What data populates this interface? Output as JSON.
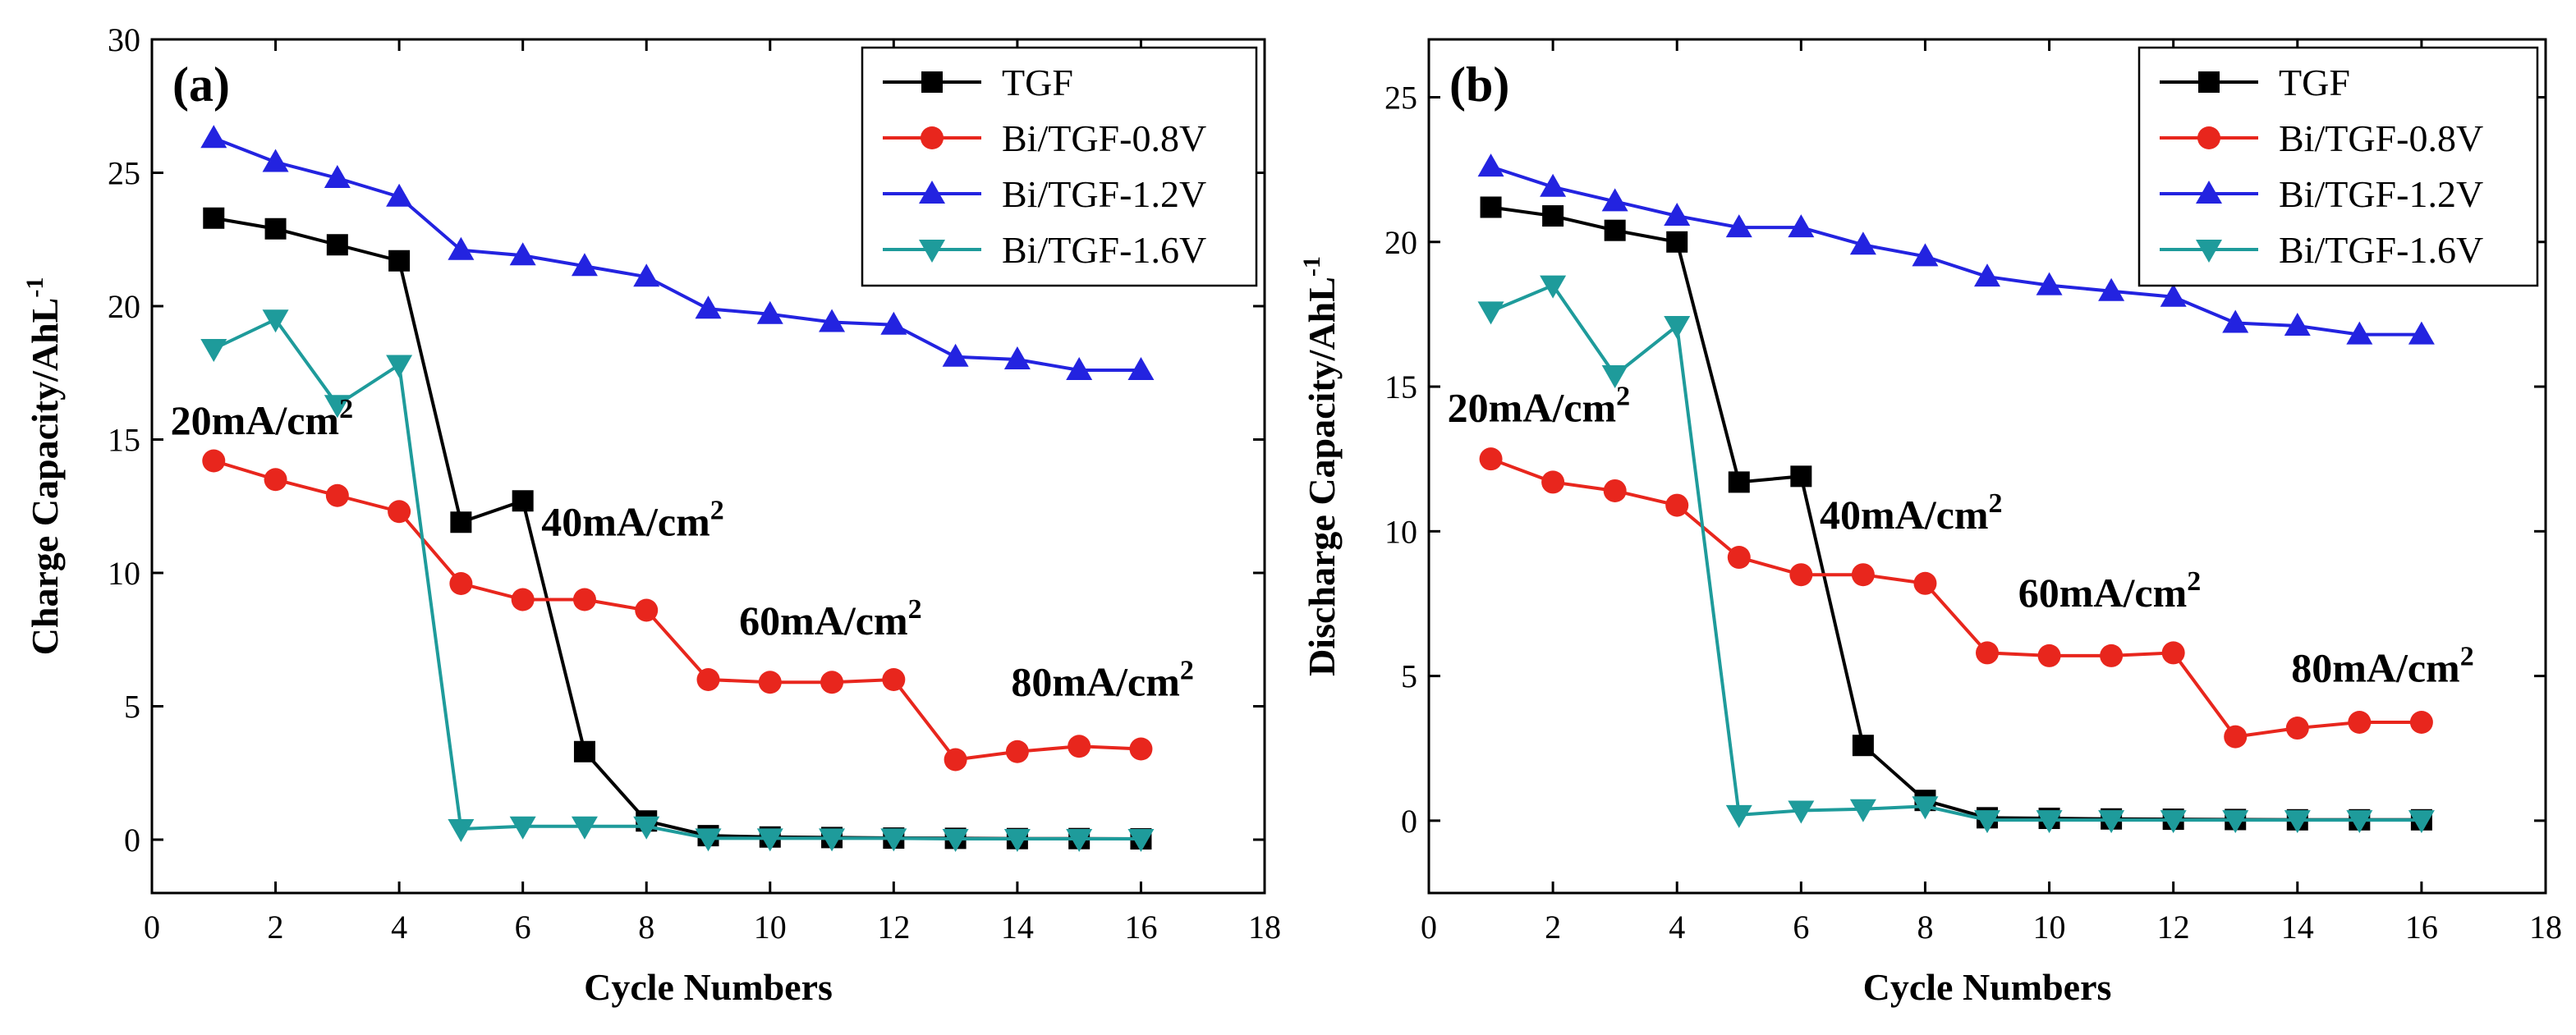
{
  "chart_data": [
    {
      "type": "line",
      "panel_label": "(a)",
      "xlabel": "Cycle Numbers",
      "ylabel": "Charge Capacity/AhL",
      "ylabel_sup": "-1",
      "xlim": [
        0,
        18
      ],
      "ylim": [
        -2,
        30
      ],
      "xticks": [
        0,
        2,
        4,
        6,
        8,
        10,
        12,
        14,
        16,
        18
      ],
      "yticks": [
        0,
        5,
        10,
        15,
        20,
        25,
        30
      ],
      "legend_position": "top-right",
      "x": [
        1,
        2,
        3,
        4,
        5,
        6,
        7,
        8,
        9,
        10,
        11,
        12,
        13,
        14,
        15,
        16
      ],
      "series": [
        {
          "name": "TGF",
          "color": "#000000",
          "marker": "square",
          "values": [
            23.3,
            22.9,
            22.3,
            21.7,
            11.9,
            12.7,
            3.3,
            0.7,
            0.15,
            0.1,
            0.08,
            0.06,
            0.05,
            0.04,
            0.04,
            0.03
          ]
        },
        {
          "name": "Bi/TGF-0.8V",
          "color": "#e8261d",
          "marker": "circle",
          "values": [
            14.2,
            13.5,
            12.9,
            12.3,
            9.6,
            9.0,
            9.0,
            8.6,
            6.0,
            5.9,
            5.9,
            6.0,
            3.0,
            3.3,
            3.5,
            3.4
          ]
        },
        {
          "name": "Bi/TGF-1.2V",
          "color": "#2323e0",
          "marker": "triangle-up",
          "values": [
            26.3,
            25.4,
            24.8,
            24.1,
            22.1,
            21.9,
            21.5,
            21.1,
            19.9,
            19.7,
            19.4,
            19.3,
            18.1,
            18.0,
            17.6,
            17.6
          ]
        },
        {
          "name": "Bi/TGF-1.6V",
          "color": "#1e9b9b",
          "marker": "triangle-down",
          "values": [
            18.4,
            19.5,
            16.3,
            17.8,
            0.4,
            0.5,
            0.5,
            0.5,
            0.05,
            0.05,
            0.05,
            0.05,
            0.03,
            0.03,
            0.03,
            0.03
          ]
        }
      ],
      "annotations": [
        {
          "text": "20mA/cm",
          "sup": "2",
          "at": [
            0.3,
            15.2
          ]
        },
        {
          "text": "40mA/cm",
          "sup": "2",
          "at": [
            6.3,
            11.4
          ]
        },
        {
          "text": "60mA/cm",
          "sup": "2",
          "at": [
            9.5,
            7.7
          ]
        },
        {
          "text": "80mA/cm",
          "sup": "2",
          "at": [
            13.9,
            5.4
          ]
        }
      ]
    },
    {
      "type": "line",
      "panel_label": "(b)",
      "xlabel": "Cycle Numbers",
      "ylabel": "Discharge Capacity/AhL",
      "ylabel_sup": "-1",
      "xlim": [
        0,
        18
      ],
      "ylim": [
        -2.5,
        27
      ],
      "xticks": [
        0,
        2,
        4,
        6,
        8,
        10,
        12,
        14,
        16,
        18
      ],
      "yticks": [
        0,
        5,
        10,
        15,
        20,
        25
      ],
      "legend_position": "top-right",
      "x": [
        1,
        2,
        3,
        4,
        5,
        6,
        7,
        8,
        9,
        10,
        11,
        12,
        13,
        14,
        15,
        16
      ],
      "series": [
        {
          "name": "TGF",
          "color": "#000000",
          "marker": "square",
          "values": [
            21.2,
            20.9,
            20.4,
            20.0,
            11.7,
            11.9,
            2.6,
            0.7,
            0.1,
            0.08,
            0.06,
            0.05,
            0.04,
            0.03,
            0.03,
            0.03
          ]
        },
        {
          "name": "Bi/TGF-0.8V",
          "color": "#e8261d",
          "marker": "circle",
          "values": [
            12.5,
            11.7,
            11.4,
            10.9,
            9.1,
            8.5,
            8.5,
            8.2,
            5.8,
            5.7,
            5.7,
            5.8,
            2.9,
            3.2,
            3.4,
            3.4
          ]
        },
        {
          "name": "Bi/TGF-1.2V",
          "color": "#2323e0",
          "marker": "triangle-up",
          "values": [
            22.6,
            21.9,
            21.4,
            20.9,
            20.5,
            20.5,
            19.9,
            19.5,
            18.8,
            18.5,
            18.3,
            18.1,
            17.2,
            17.1,
            16.8,
            16.8
          ]
        },
        {
          "name": "Bi/TGF-1.6V",
          "color": "#1e9b9b",
          "marker": "triangle-down",
          "values": [
            17.6,
            18.5,
            15.4,
            17.1,
            0.2,
            0.35,
            0.4,
            0.5,
            0.02,
            0.02,
            0.02,
            0.02,
            0.02,
            0.02,
            0.02,
            0.02
          ]
        }
      ],
      "annotations": [
        {
          "text": "20mA/cm",
          "sup": "2",
          "at": [
            0.3,
            13.8
          ]
        },
        {
          "text": "40mA/cm",
          "sup": "2",
          "at": [
            6.3,
            10.1
          ]
        },
        {
          "text": "60mA/cm",
          "sup": "2",
          "at": [
            9.5,
            7.4
          ]
        },
        {
          "text": "80mA/cm",
          "sup": "2",
          "at": [
            13.9,
            4.8
          ]
        }
      ]
    }
  ]
}
